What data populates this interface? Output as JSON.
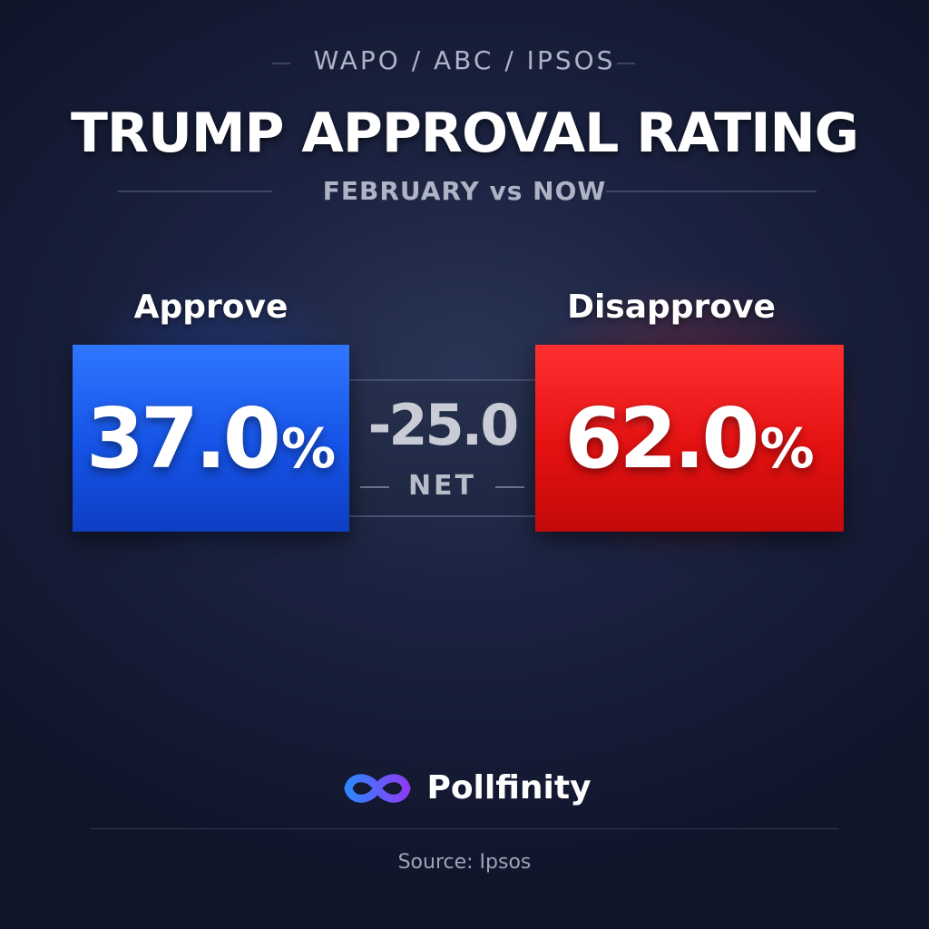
{
  "header": {
    "kicker": "WAPO / ABC / IPSOS",
    "title": "TRUMP APPROVAL RATING",
    "subtitle": "FEBRUARY vs NOW"
  },
  "approve": {
    "label": "Approve",
    "value": "37.0",
    "unit": "%",
    "color": "#1b5cf0"
  },
  "disapprove": {
    "label": "Disapprove",
    "value": "62.0",
    "unit": "%",
    "color": "#e41111"
  },
  "net": {
    "value": "-25.0",
    "label": "NET"
  },
  "brand": {
    "name": "Pollfinity",
    "icon": "infinity-logo-icon"
  },
  "footer": {
    "source": "Source: Ipsos"
  }
}
